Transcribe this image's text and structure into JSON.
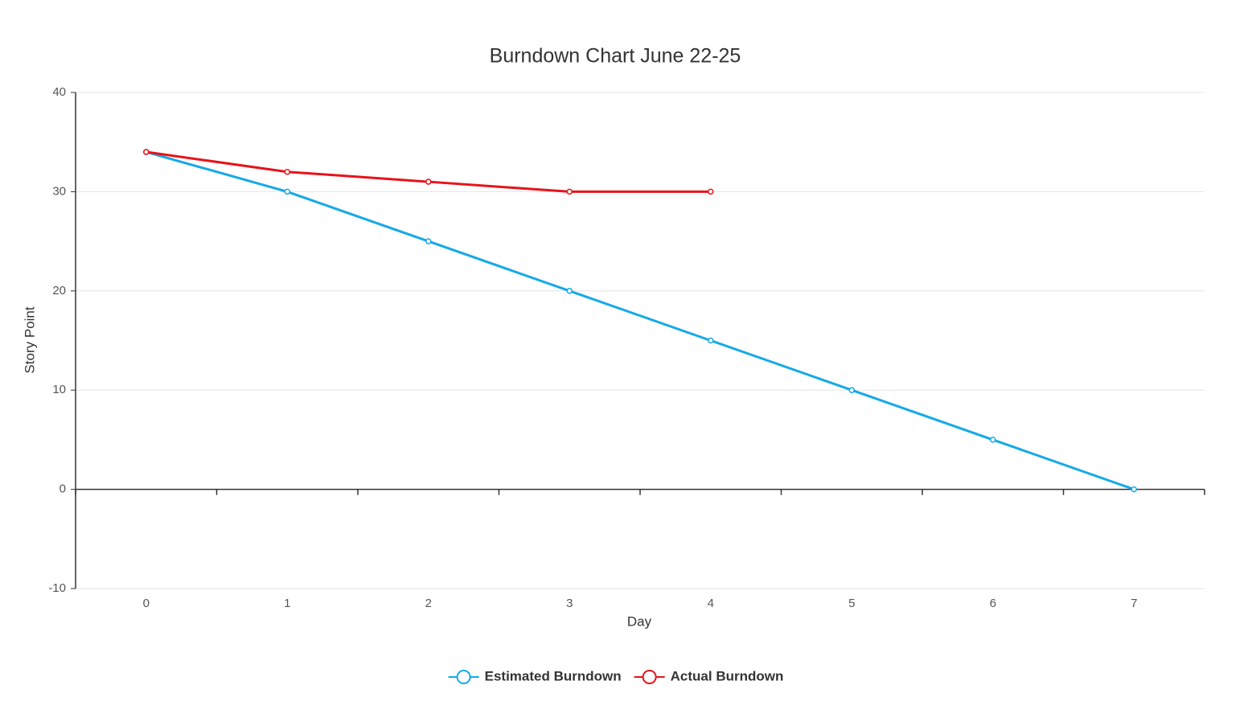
{
  "chart_data": {
    "type": "line",
    "title": "Burndown Chart June 22-25",
    "x_label": "Day",
    "y_label": "Story Point",
    "categories": [
      "0",
      "1",
      "2",
      "3",
      "4",
      "5",
      "6",
      "7"
    ],
    "series": [
      {
        "name": "Estimated Burndown",
        "color": "#15a9e8",
        "values": [
          34,
          30,
          25,
          20,
          15,
          10,
          5,
          0
        ]
      },
      {
        "name": "Actual Burndown",
        "color": "#e8121a",
        "values": [
          34,
          32,
          31,
          30,
          30,
          null,
          null,
          null
        ]
      }
    ],
    "ylim": [
      -10,
      40
    ],
    "yticks": [
      -10,
      0,
      10,
      20,
      30,
      40
    ],
    "grid": true,
    "legend": "bottom"
  }
}
